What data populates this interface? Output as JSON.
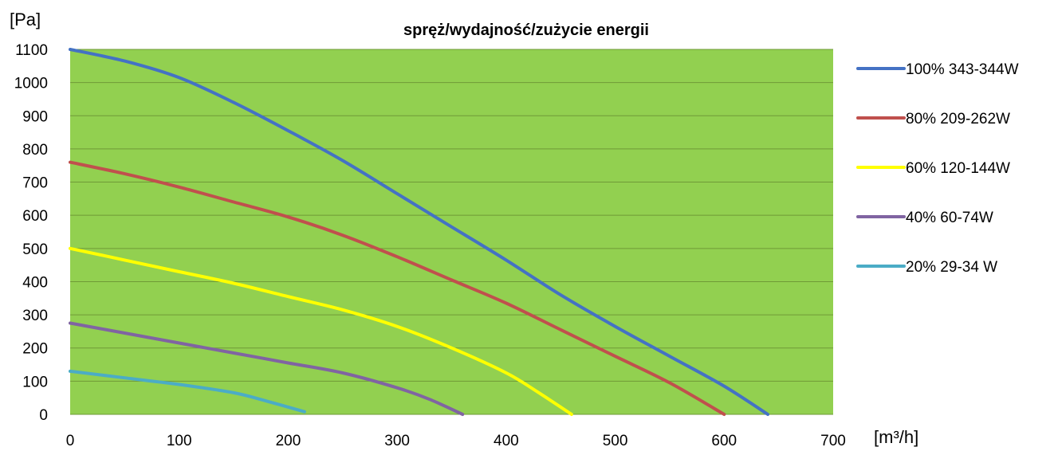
{
  "chart_data": {
    "type": "line",
    "title": "spręż/wydajność/zużycie energii",
    "ylabel": "[Pa]",
    "xlabel": "[m³/h]",
    "xlim": [
      0,
      700
    ],
    "ylim": [
      0,
      1100
    ],
    "x_ticks": [
      "0",
      "100",
      "200",
      "300",
      "400",
      "500",
      "600",
      "700"
    ],
    "y_ticks": [
      "0",
      "100",
      "200",
      "300",
      "400",
      "500",
      "600",
      "700",
      "800",
      "900",
      "1000",
      "1100"
    ],
    "grid": "horizontal",
    "plot_background": "#92D050",
    "legend_position": "right",
    "series": [
      {
        "name": "100% 343-344W",
        "color": "#4472C4",
        "points": [
          [
            0,
            1100
          ],
          [
            50,
            1065
          ],
          [
            100,
            1015
          ],
          [
            150,
            940
          ],
          [
            200,
            855
          ],
          [
            250,
            765
          ],
          [
            300,
            665
          ],
          [
            350,
            565
          ],
          [
            400,
            465
          ],
          [
            450,
            360
          ],
          [
            500,
            265
          ],
          [
            550,
            175
          ],
          [
            600,
            85
          ],
          [
            640,
            0
          ]
        ]
      },
      {
        "name": "80% 209-262W",
        "color": "#C0504D",
        "points": [
          [
            0,
            760
          ],
          [
            50,
            725
          ],
          [
            100,
            685
          ],
          [
            150,
            640
          ],
          [
            200,
            595
          ],
          [
            250,
            540
          ],
          [
            300,
            475
          ],
          [
            350,
            405
          ],
          [
            400,
            335
          ],
          [
            450,
            255
          ],
          [
            500,
            175
          ],
          [
            550,
            95
          ],
          [
            600,
            0
          ]
        ]
      },
      {
        "name": "60% 120-144W",
        "color": "#FFFF00",
        "points": [
          [
            0,
            500
          ],
          [
            50,
            465
          ],
          [
            100,
            430
          ],
          [
            150,
            395
          ],
          [
            200,
            355
          ],
          [
            250,
            315
          ],
          [
            300,
            265
          ],
          [
            350,
            200
          ],
          [
            400,
            125
          ],
          [
            430,
            65
          ],
          [
            460,
            0
          ]
        ]
      },
      {
        "name": "40% 60-74W",
        "color": "#8064A2",
        "points": [
          [
            0,
            275
          ],
          [
            50,
            245
          ],
          [
            100,
            215
          ],
          [
            150,
            185
          ],
          [
            200,
            155
          ],
          [
            250,
            125
          ],
          [
            300,
            80
          ],
          [
            330,
            45
          ],
          [
            360,
            0
          ]
        ]
      },
      {
        "name": "20% 29-34 W",
        "color": "#4BACC6",
        "points": [
          [
            0,
            130
          ],
          [
            50,
            110
          ],
          [
            100,
            90
          ],
          [
            150,
            65
          ],
          [
            180,
            40
          ],
          [
            215,
            8
          ]
        ]
      }
    ]
  }
}
